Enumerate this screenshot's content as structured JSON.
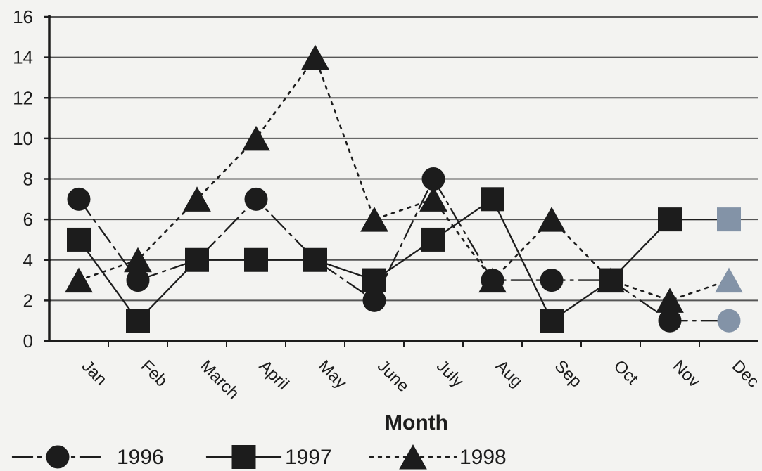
{
  "chart_data": {
    "type": "line",
    "title": "",
    "xlabel": "Month",
    "ylabel": "",
    "ylim": [
      0,
      16
    ],
    "yticks": [
      0,
      2,
      4,
      6,
      8,
      10,
      12,
      14,
      16
    ],
    "categories": [
      "Jan",
      "Feb",
      "March",
      "April",
      "May",
      "June",
      "July",
      "Aug",
      "Sep",
      "Oct",
      "Nov",
      "Dec"
    ],
    "grid": "horizontal",
    "legend_position": "bottom",
    "series": [
      {
        "name": "1996",
        "marker": "circle",
        "line_style": "dash-dot",
        "values": [
          7,
          3,
          4,
          7,
          4,
          2,
          8,
          3,
          3,
          3,
          1,
          1
        ]
      },
      {
        "name": "1997",
        "marker": "square",
        "line_style": "solid",
        "values": [
          5,
          1,
          4,
          4,
          4,
          3,
          5,
          7,
          1,
          3,
          6,
          6
        ]
      },
      {
        "name": "1998",
        "marker": "triangle",
        "line_style": "dotted",
        "values": [
          3,
          4,
          7,
          10,
          14,
          6,
          7,
          3,
          6,
          3,
          2,
          3
        ]
      }
    ],
    "colors": {
      "main": "#1c1c1c",
      "faded_month": "#6d7584",
      "dec_marker": "#8393a7",
      "grid": "#555555",
      "background": "#f3f3f1"
    }
  }
}
